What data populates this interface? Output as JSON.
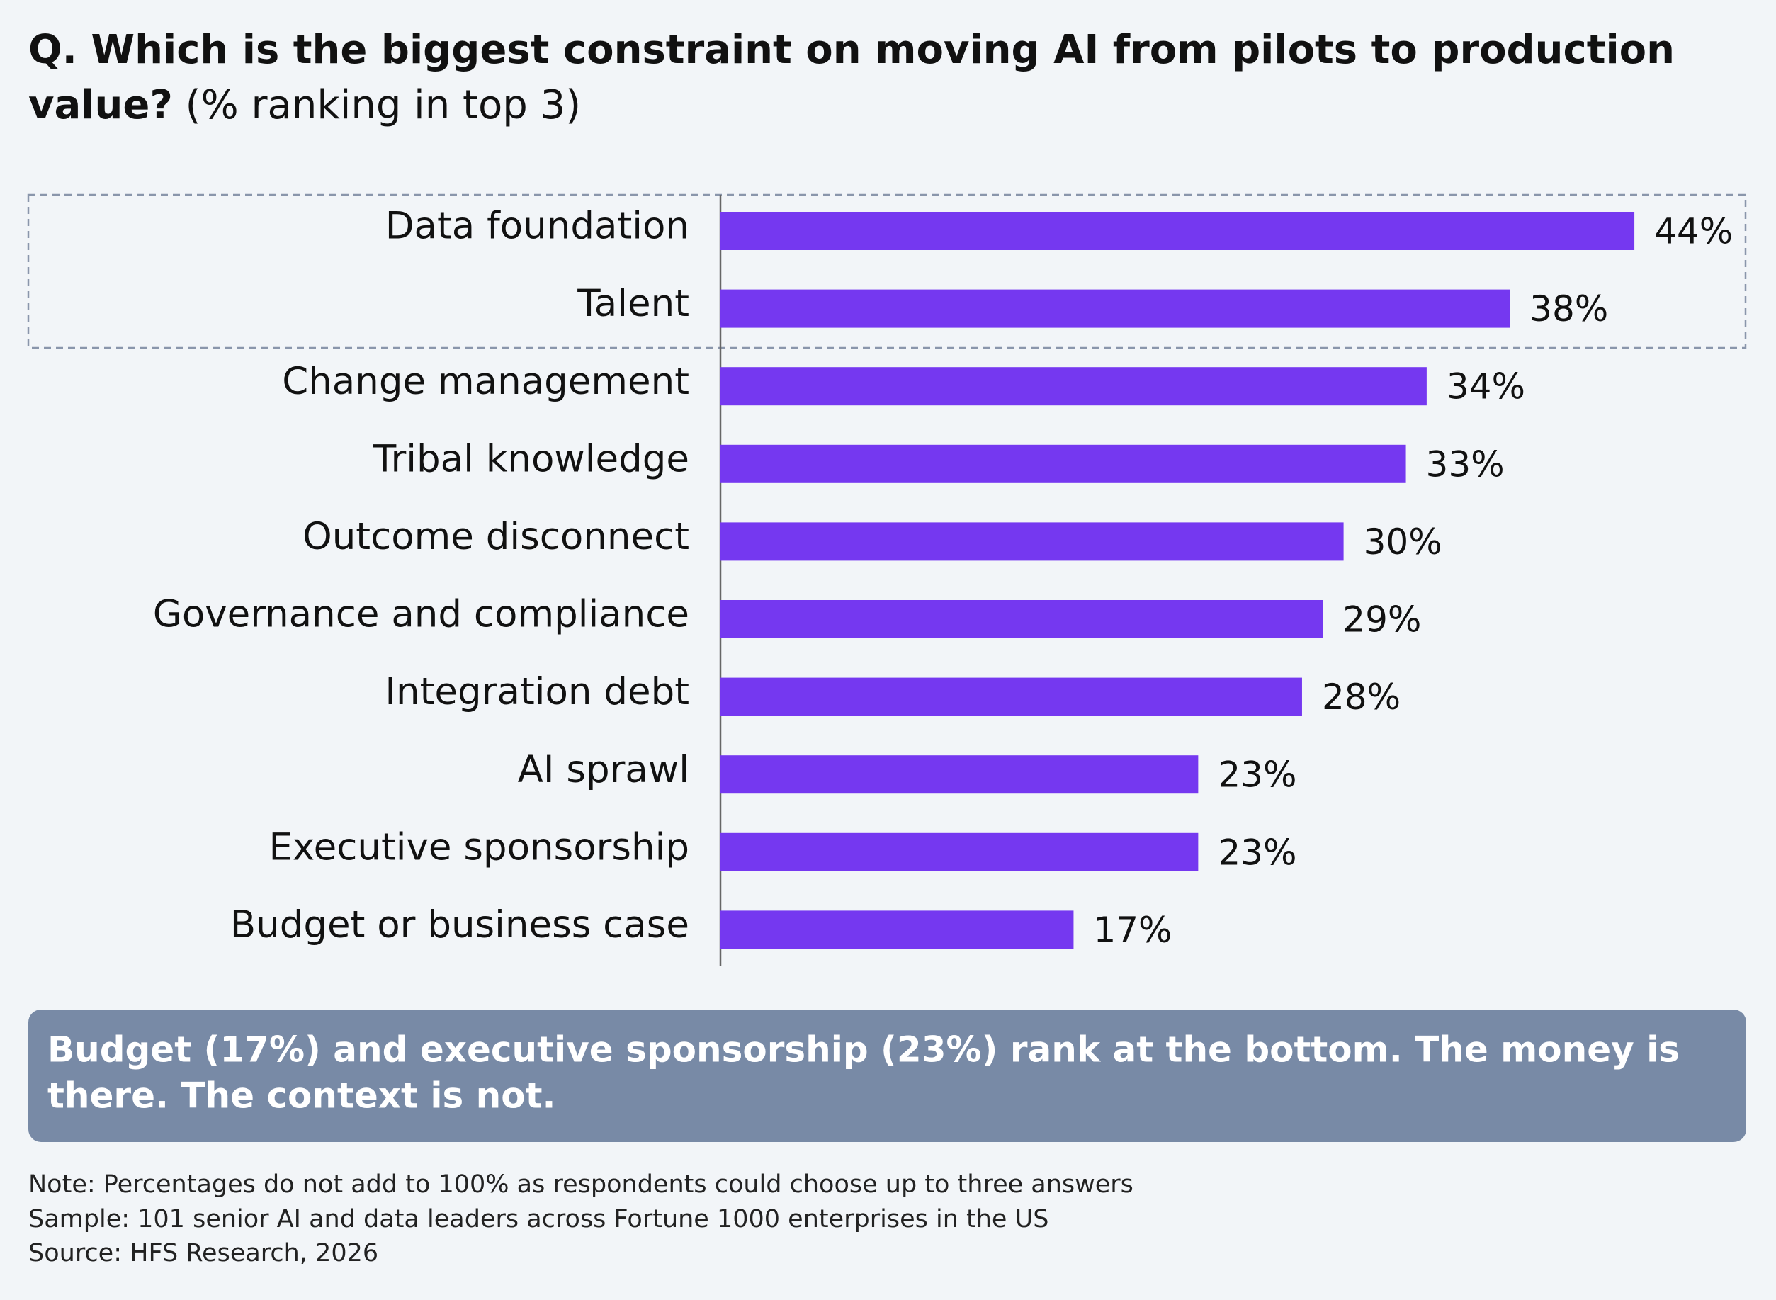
{
  "chart_data": {
    "type": "bar",
    "orientation": "horizontal",
    "title": [
      "Q. Which is the biggest constraint on moving AI from pilots to production",
      "value?"
    ],
    "subtitle": "(% ranking in top 3)",
    "categories": [
      "Data foundation",
      "Talent",
      "Change management",
      "Tribal knowledge",
      "Outcome disconnect",
      "Governance and compliance",
      "Integration debt",
      "AI sprawl",
      "Executive sponsorship",
      "Budget or business case"
    ],
    "values": [
      44,
      38,
      34,
      33,
      30,
      29,
      28,
      23,
      23,
      17
    ],
    "value_labels": [
      "44%",
      "38%",
      "34%",
      "33%",
      "30%",
      "29%",
      "28%",
      "23%",
      "23%",
      "17%"
    ],
    "color": "#7538f0",
    "xlim": [
      0,
      50
    ],
    "callout": [
      "Budget (17%) and executive sponsorship (23%) rank at the bottom. The money is",
      "there. The context is not."
    ],
    "notes": [
      "Note: Percentages do not add to 100% as respondents could choose up to three answers",
      "Sample: 101 senior AI and data leaders across Fortune 1000 enterprises in the US",
      "Source: HFS Research, 2026"
    ]
  }
}
